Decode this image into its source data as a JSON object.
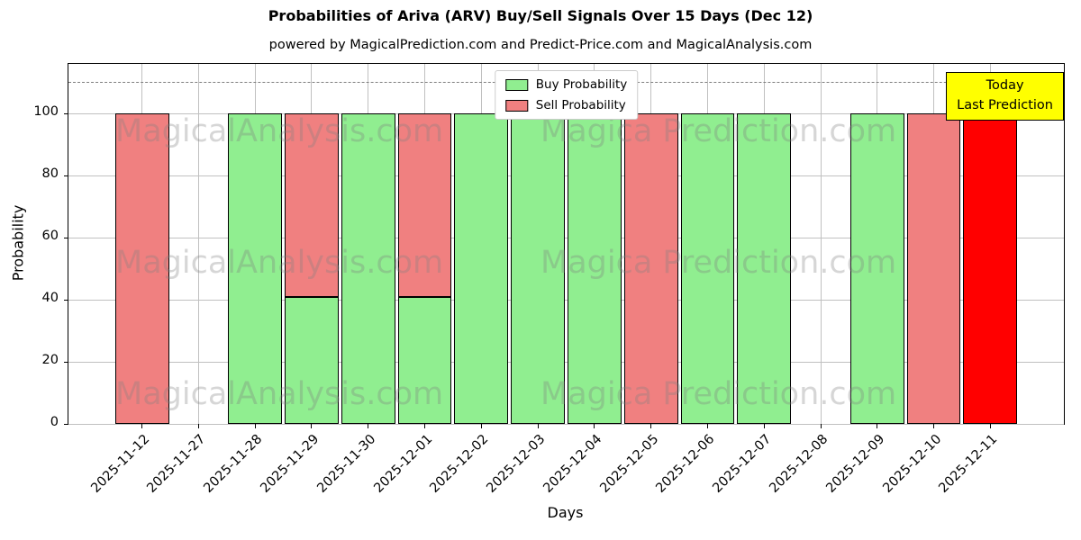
{
  "chart_data": {
    "type": "bar",
    "stacked": true,
    "title": "Probabilities of Ariva (ARV) Buy/Sell Signals Over 15 Days (Dec 12)",
    "subtitle": "powered by MagicalPrediction.com and Predict-Price.com and MagicalAnalysis.com",
    "xlabel": "Days",
    "ylabel": "Probability",
    "ylim": [
      0,
      116
    ],
    "yticks": [
      0,
      20,
      40,
      60,
      80,
      100
    ],
    "threshold_line_y": 110,
    "grid": true,
    "categories": [
      "2025-11-12",
      "2025-11-27",
      "2025-11-28",
      "2025-11-29",
      "2025-11-30",
      "2025-12-01",
      "2025-12-02",
      "2025-12-03",
      "2025-12-04",
      "2025-12-05",
      "2025-12-06",
      "2025-12-07",
      "2025-12-08",
      "2025-12-09",
      "2025-12-10",
      "2025-12-11"
    ],
    "series": [
      {
        "name": "Buy Probability",
        "color": "#90EE90",
        "values": [
          0,
          0,
          100,
          41,
          100,
          41,
          100,
          100,
          100,
          0,
          100,
          100,
          0,
          100,
          0,
          0
        ]
      },
      {
        "name": "Sell Probability",
        "color": "#F08080",
        "values": [
          100,
          0,
          0,
          59,
          0,
          59,
          0,
          0,
          0,
          100,
          0,
          0,
          0,
          0,
          100,
          0
        ]
      },
      {
        "name": "Last Prediction (today)",
        "color": "#FF0000",
        "values": [
          0,
          0,
          0,
          0,
          0,
          0,
          0,
          0,
          0,
          0,
          0,
          0,
          0,
          0,
          0,
          100
        ]
      }
    ],
    "legend": {
      "position": "top-center",
      "items": [
        {
          "label": "Buy Probability",
          "color": "#90EE90"
        },
        {
          "label": "Sell Probability",
          "color": "#F08080"
        }
      ]
    },
    "annotation": {
      "lines": [
        "Today",
        "Last Prediction"
      ],
      "bg_color": "#FFFF00"
    },
    "watermarks": [
      "MagicalAnalysis.com",
      "Magica Prediction.com"
    ],
    "colors": {
      "bar_edge": "#000000",
      "grid": "#c0c0c0",
      "threshold": "#7f7f7f"
    }
  }
}
